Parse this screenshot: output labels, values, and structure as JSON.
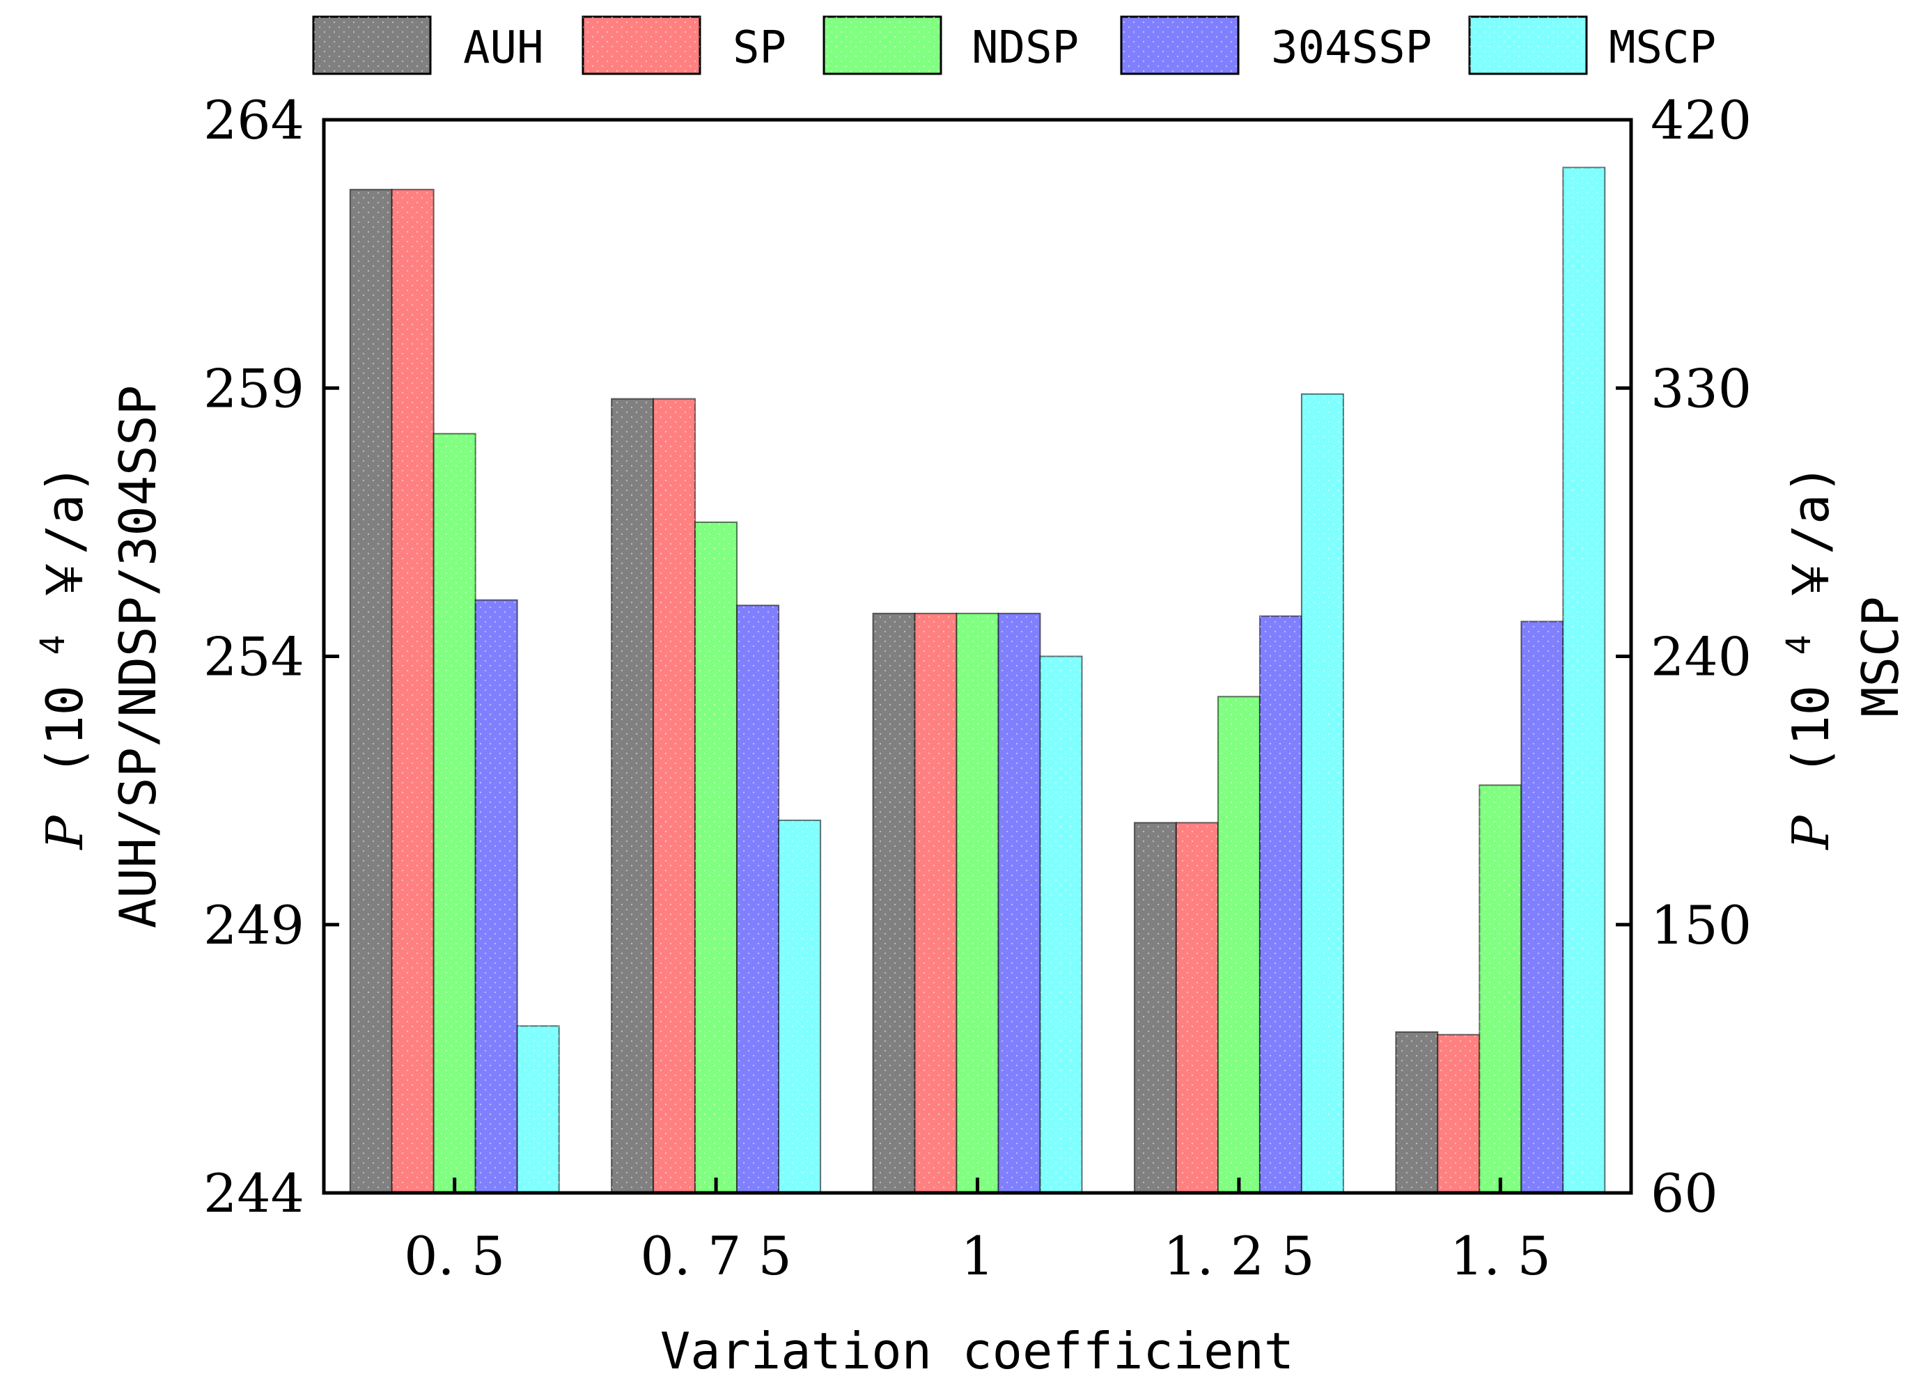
{
  "chart_data": {
    "type": "bar",
    "categories": [
      "0.5",
      "0.75",
      "1",
      "1.25",
      "1.5"
    ],
    "xlabel": "Variation coefficient",
    "ylabel_left": {
      "symbol": "P",
      "unit_prefix": "(10",
      "unit_exp": "4",
      "unit_suffix": "￥/a)",
      "series_label": "AUH/SP/NDSP/304SSP"
    },
    "ylabel_right": {
      "symbol": "P",
      "unit_prefix": "(10",
      "unit_exp": "4",
      "unit_suffix": "￥/a)",
      "series_label": "MSCP"
    },
    "ylim_left": [
      244,
      264
    ],
    "ylim_right": [
      60,
      420
    ],
    "yticks_left": [
      "244",
      "249",
      "254",
      "259",
      "264"
    ],
    "yticks_right": [
      "60",
      "150",
      "240",
      "330",
      "420"
    ],
    "legend_position": "top",
    "series": [
      {
        "name": "AUH",
        "axis": "left",
        "color": "#808080",
        "values": [
          262.7,
          258.8,
          254.8,
          250.9,
          247.0
        ]
      },
      {
        "name": "SP",
        "axis": "left",
        "color": "#ff8080",
        "values": [
          262.7,
          258.8,
          254.8,
          250.9,
          246.95
        ]
      },
      {
        "name": "NDSP",
        "axis": "left",
        "color": "#80ff80",
        "values": [
          258.15,
          256.5,
          254.8,
          253.25,
          251.6
        ]
      },
      {
        "name": "304SSP",
        "axis": "left",
        "color": "#8080ff",
        "values": [
          255.05,
          254.95,
          254.8,
          254.75,
          254.65
        ]
      },
      {
        "name": "MSCP",
        "axis": "right",
        "color": "#80ffff",
        "values": [
          116,
          185,
          240,
          328,
          404
        ]
      }
    ]
  }
}
